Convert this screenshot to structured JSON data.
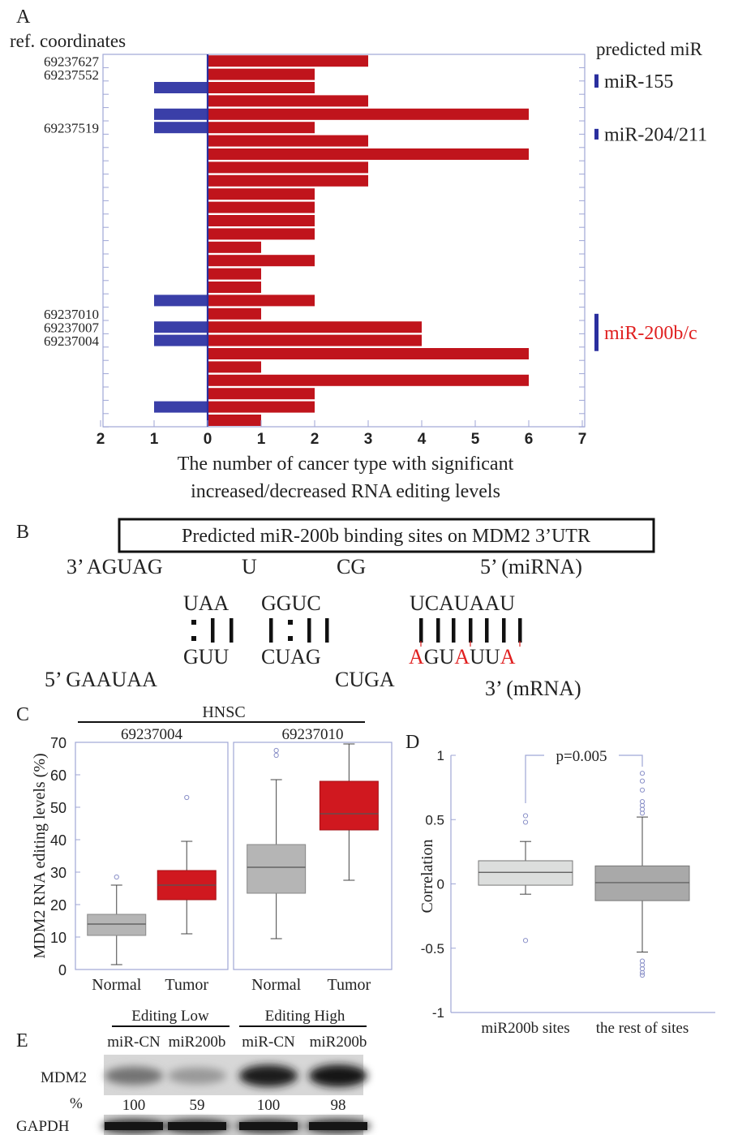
{
  "panel_labels": [
    "A",
    "B",
    "C",
    "D",
    "E"
  ],
  "panelA": {
    "ylabel_title": "ref. coordinates",
    "right_title": "predicted miR",
    "xlabel_line1": "The number of cancer type with significant",
    "xlabel_line2": "increased/decreased RNA editing levels",
    "coord_labels": [
      {
        "text": "69237627",
        "row": 1
      },
      {
        "text": "69237552",
        "row": 2
      },
      {
        "text": "69237519",
        "row": 6
      },
      {
        "text": "69237010",
        "row": 20
      },
      {
        "text": "69237007",
        "row": 21
      },
      {
        "text": "69237004",
        "row": 22
      }
    ],
    "mirs": [
      {
        "text": "miR-155",
        "rows": [
          1.5,
          2.5
        ],
        "color": "#222222"
      },
      {
        "text": "miR-204/211",
        "rows": [
          5.6,
          6.4
        ],
        "color": "#222222"
      },
      {
        "text": "miR-200b/c",
        "rows": [
          19.5,
          22.3
        ],
        "color": "#e02020"
      }
    ],
    "mir_bar_color": "#2a2f9e",
    "chart_data": {
      "type": "bar",
      "orientation": "horizontal",
      "xlim": [
        -2,
        7
      ],
      "xticks": [
        -2,
        -1,
        0,
        1,
        2,
        3,
        4,
        5,
        6,
        7
      ],
      "xtick_labels": [
        "2",
        "1",
        "0",
        "1",
        "2",
        "3",
        "4",
        "5",
        "6",
        "7"
      ],
      "series": [
        {
          "color": "#c0141c",
          "values": [
            3,
            2,
            2,
            3,
            6,
            2,
            3,
            6,
            3,
            3,
            2,
            2,
            2,
            2,
            1,
            2,
            1,
            1,
            2,
            1,
            4,
            4,
            6,
            1,
            6,
            2,
            2,
            1
          ]
        },
        {
          "color": "#3a3fa8",
          "values": [
            0,
            0,
            1,
            0,
            1,
            1,
            0,
            0,
            0,
            0,
            0,
            0,
            0,
            0,
            0,
            0,
            0,
            0,
            1,
            0,
            1,
            1,
            0,
            0,
            0,
            0,
            1,
            0
          ]
        }
      ]
    }
  },
  "panelB": {
    "title": "Predicted miR-200b binding sites on MDM2 3’UTR",
    "mirna_top": [
      {
        "text": "3’ AGUAG",
        "x": 82
      },
      {
        "text": "U",
        "x": 298
      },
      {
        "text": "CG",
        "x": 415
      },
      {
        "text": "5’ (miRNA)",
        "x": 592
      }
    ],
    "mirna_paired": [
      {
        "text": "UAA",
        "x": 226
      },
      {
        "text": "GGUC",
        "x": 322
      },
      {
        "text": "UCAUAAU",
        "x": 505
      }
    ],
    "mrna_paired_plain": [
      {
        "text": "GUU",
        "x": 226
      },
      {
        "text": "CUAG",
        "x": 322
      }
    ],
    "mrna_seq3": [
      {
        "ch": "A",
        "red": true
      },
      {
        "ch": "GU",
        "red": false
      },
      {
        "ch": "A",
        "red": true
      },
      {
        "ch": "UU",
        "red": false
      },
      {
        "ch": "A",
        "red": true
      }
    ],
    "mrna_bottom": [
      {
        "text": "5’ GAAUAA",
        "x": 55
      },
      {
        "text": "CUGA",
        "x": 413
      },
      {
        "text": "3’ (mRNA)",
        "x": 598
      }
    ]
  },
  "panelC": {
    "group_label": "HNSC",
    "ylabel": "MDM2 RNA editing levels (%)",
    "ylim": [
      0,
      70
    ],
    "yticks": [
      0,
      10,
      20,
      30,
      40,
      50,
      60,
      70
    ],
    "chart_data": {
      "type": "box",
      "panels": [
        {
          "title": "69237004",
          "categories": [
            "Normal",
            "Tumor"
          ],
          "boxes": [
            {
              "whisker_low": 1.5,
              "q1": 10.5,
              "median": 14,
              "q3": 17,
              "whisker_high": 26,
              "outliers": [
                28.5
              ],
              "color": "#b5b5b5"
            },
            {
              "whisker_low": 11,
              "q1": 21.5,
              "median": 26,
              "q3": 30.5,
              "whisker_high": 39.5,
              "outliers": [
                53
              ],
              "color": "#d0181f"
            }
          ]
        },
        {
          "title": "69237010",
          "categories": [
            "Normal",
            "Tumor"
          ],
          "boxes": [
            {
              "whisker_low": 9.5,
              "q1": 23.5,
              "median": 31.5,
              "q3": 38.5,
              "whisker_high": 58.5,
              "outliers": [
                66,
                67.5
              ],
              "color": "#b5b5b5"
            },
            {
              "whisker_low": 27.5,
              "q1": 43,
              "median": 48,
              "q3": 58,
              "whisker_high": 69.5,
              "outliers": [],
              "color": "#d0181f"
            }
          ]
        }
      ]
    }
  },
  "panelD": {
    "ylabel": "Correlation",
    "pvalue": "p=0.005",
    "ylim": [
      -1,
      1
    ],
    "yticks": [
      -1,
      -0.5,
      0,
      0.5,
      1
    ],
    "ytick_labels": [
      "-1",
      "-0.5",
      "0",
      "0.5",
      "1"
    ],
    "chart_data": {
      "type": "box",
      "categories": [
        "miR200b sites",
        "the rest of sites"
      ],
      "boxes": [
        {
          "whisker_low": -0.08,
          "q1": -0.01,
          "median": 0.09,
          "q3": 0.18,
          "whisker_high": 0.33,
          "outliers": [
            0.48,
            0.53,
            -0.44
          ],
          "color": "#dcdedd"
        },
        {
          "whisker_low": -0.53,
          "q1": -0.13,
          "median": 0.01,
          "q3": 0.14,
          "whisker_high": 0.52,
          "outliers": [
            0.55,
            0.58,
            0.61,
            0.64,
            0.73,
            0.8,
            0.86,
            -0.6,
            -0.63,
            -0.66,
            -0.69,
            -0.71
          ],
          "color": "#a9a9a9"
        }
      ]
    }
  },
  "panelE": {
    "group_labels": [
      "Editing Low",
      "Editing High"
    ],
    "lane_labels": [
      "miR-CN",
      "miR200b",
      "miR-CN",
      "miR200b"
    ],
    "row_labels": {
      "mdm2": "MDM2",
      "pct": "%",
      "gapdh": "GAPDH"
    },
    "percentages": [
      "100",
      "59",
      "100",
      "98"
    ],
    "mdm2_intensity": [
      0.45,
      0.25,
      0.9,
      0.95
    ]
  }
}
